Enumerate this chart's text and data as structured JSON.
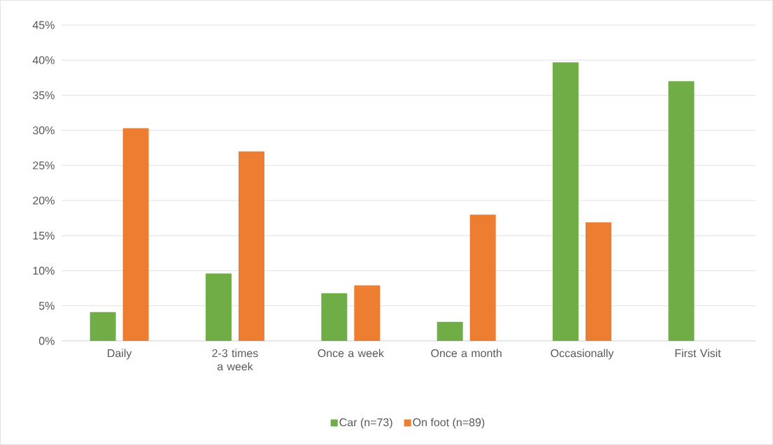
{
  "chart_data": {
    "type": "bar",
    "categories": [
      "Daily",
      "2-3 times a week",
      "Once a week",
      "Once a month",
      "Occasionally",
      "First Visit"
    ],
    "series": [
      {
        "name": "Car (n=73)",
        "color": "#70ad47",
        "values": [
          4.1,
          9.6,
          6.8,
          2.7,
          39.7,
          37.0
        ]
      },
      {
        "name": "On foot (n=89)",
        "color": "#ed7d31",
        "values": [
          30.3,
          27.0,
          7.9,
          18.0,
          16.9,
          0
        ]
      }
    ],
    "ylim": [
      0,
      45
    ],
    "yticks": [
      {
        "value": 0,
        "label": "0%"
      },
      {
        "value": 5,
        "label": "5%"
      },
      {
        "value": 10,
        "label": "10%"
      },
      {
        "value": 15,
        "label": "15%"
      },
      {
        "value": 20,
        "label": "20%"
      },
      {
        "value": 25,
        "label": "25%"
      },
      {
        "value": 30,
        "label": "30%"
      },
      {
        "value": 35,
        "label": "35%"
      },
      {
        "value": 40,
        "label": "40%"
      },
      {
        "value": 45,
        "label": "45%"
      }
    ],
    "grid": "y",
    "legend": "bottom"
  }
}
